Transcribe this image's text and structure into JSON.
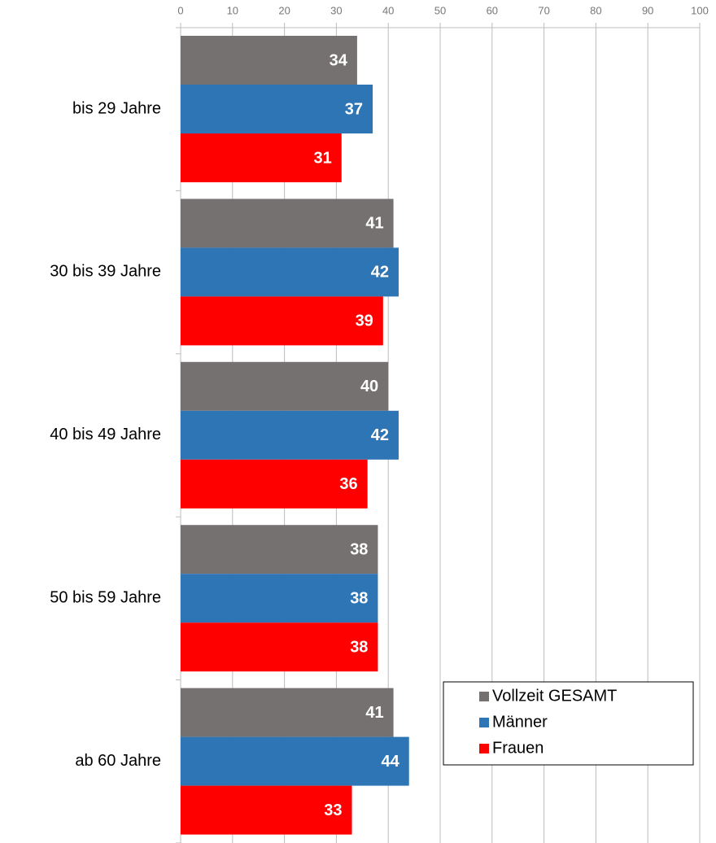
{
  "chart_data": {
    "type": "bar",
    "orientation": "horizontal",
    "categories": [
      "bis 29 Jahre",
      "30 bis 39 Jahre",
      "40 bis 49 Jahre",
      "50 bis 59 Jahre",
      "ab 60 Jahre"
    ],
    "series": [
      {
        "name": "Vollzeit GESAMT",
        "color": "#767171",
        "values": [
          34,
          41,
          40,
          38,
          41
        ]
      },
      {
        "name": "Männer",
        "color": "#2e75b6",
        "values": [
          37,
          42,
          42,
          38,
          44
        ]
      },
      {
        "name": "Frauen",
        "color": "#ff0000",
        "values": [
          31,
          39,
          36,
          38,
          33
        ]
      }
    ],
    "xlim": [
      0,
      100
    ],
    "xticks": [
      0,
      10,
      20,
      30,
      40,
      50,
      60,
      70,
      80,
      90,
      100
    ],
    "grid": true,
    "legend": "lower right"
  }
}
